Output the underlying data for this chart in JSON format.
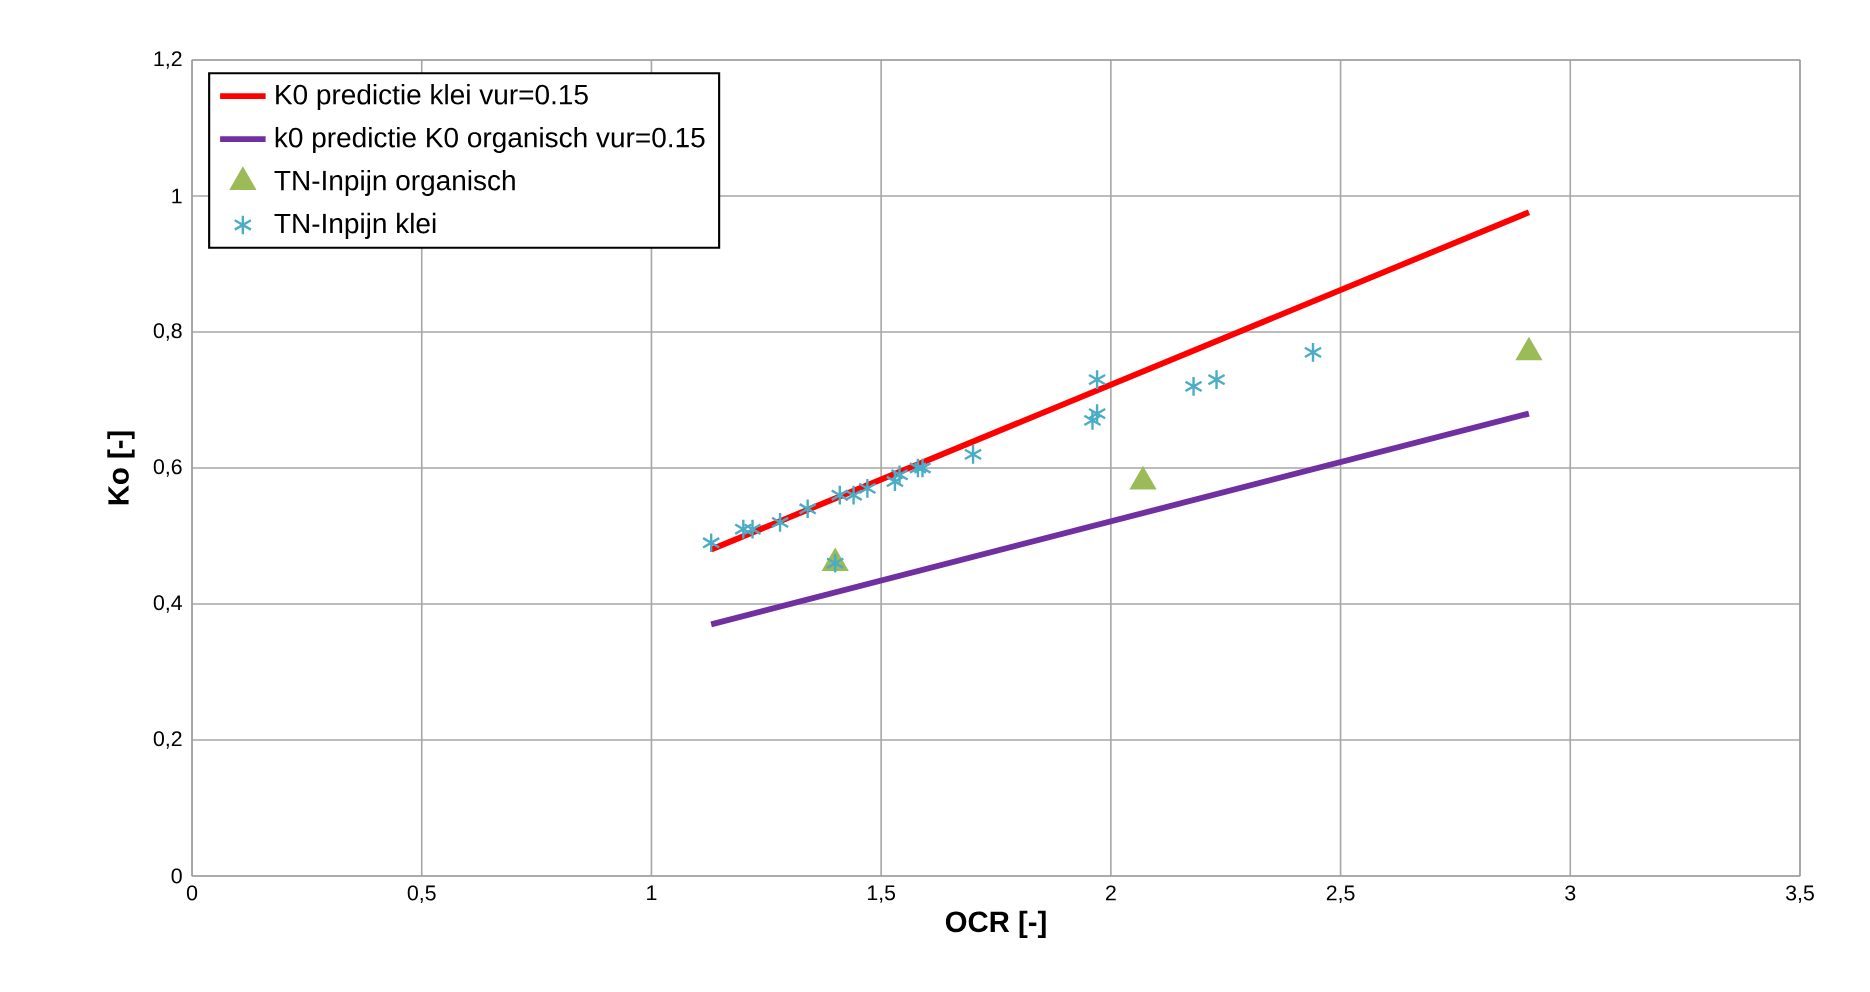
{
  "chart_data": {
    "type": "line",
    "xlabel": "OCR [-]",
    "ylabel": "Ko [-]",
    "xlim": [
      0,
      3.5
    ],
    "ylim": [
      0,
      1.2
    ],
    "xticks": [
      {
        "value": 0,
        "label": "0"
      },
      {
        "value": 0.5,
        "label": "0,5"
      },
      {
        "value": 1,
        "label": "1"
      },
      {
        "value": 1.5,
        "label": "1,5"
      },
      {
        "value": 2,
        "label": "2"
      },
      {
        "value": 2.5,
        "label": "2,5"
      },
      {
        "value": 3,
        "label": "3"
      },
      {
        "value": 3.5,
        "label": "3,5"
      }
    ],
    "yticks": [
      {
        "value": 0,
        "label": "0"
      },
      {
        "value": 0.2,
        "label": "0,2"
      },
      {
        "value": 0.4,
        "label": "0,4"
      },
      {
        "value": 0.6,
        "label": "0,6"
      },
      {
        "value": 0.8,
        "label": "0,8"
      },
      {
        "value": 1,
        "label": "1"
      },
      {
        "value": 1.2,
        "label": "1,2"
      }
    ],
    "grid": true,
    "legend": "top left",
    "series": [
      {
        "name": "K0 predictie klei vur=0.15",
        "color": "#ff0000",
        "line_style": "solid",
        "marker": "none",
        "x": [
          1.13,
          2.91
        ],
        "values": [
          0.48,
          0.976
        ]
      },
      {
        "name": "k0 predictie K0 organisch vur=0.15",
        "color": "#7030a0",
        "line_style": "solid",
        "marker": "none",
        "x": [
          1.13,
          2.91
        ],
        "values": [
          0.37,
          0.68
        ]
      },
      {
        "name": "TN-Inpijn organisch",
        "type": "scatter",
        "color": "#9bbb59",
        "marker": "triangle",
        "x": [
          1.4,
          2.07,
          2.91
        ],
        "values": [
          0.46,
          0.58,
          0.77
        ]
      },
      {
        "name": "TN-Inpijn klei",
        "type": "scatter",
        "color": "#4bacc6",
        "marker": "cross",
        "x": [
          1.13,
          1.2,
          1.22,
          1.28,
          1.34,
          1.4,
          1.41,
          1.44,
          1.47,
          1.53,
          1.54,
          1.58,
          1.59,
          1.7,
          1.96,
          1.97,
          1.97,
          2.18,
          2.23,
          2.44
        ],
        "values": [
          0.49,
          0.51,
          0.51,
          0.52,
          0.54,
          0.46,
          0.56,
          0.56,
          0.57,
          0.58,
          0.59,
          0.6,
          0.6,
          0.62,
          0.67,
          0.68,
          0.73,
          0.72,
          0.73,
          0.77
        ]
      }
    ]
  }
}
